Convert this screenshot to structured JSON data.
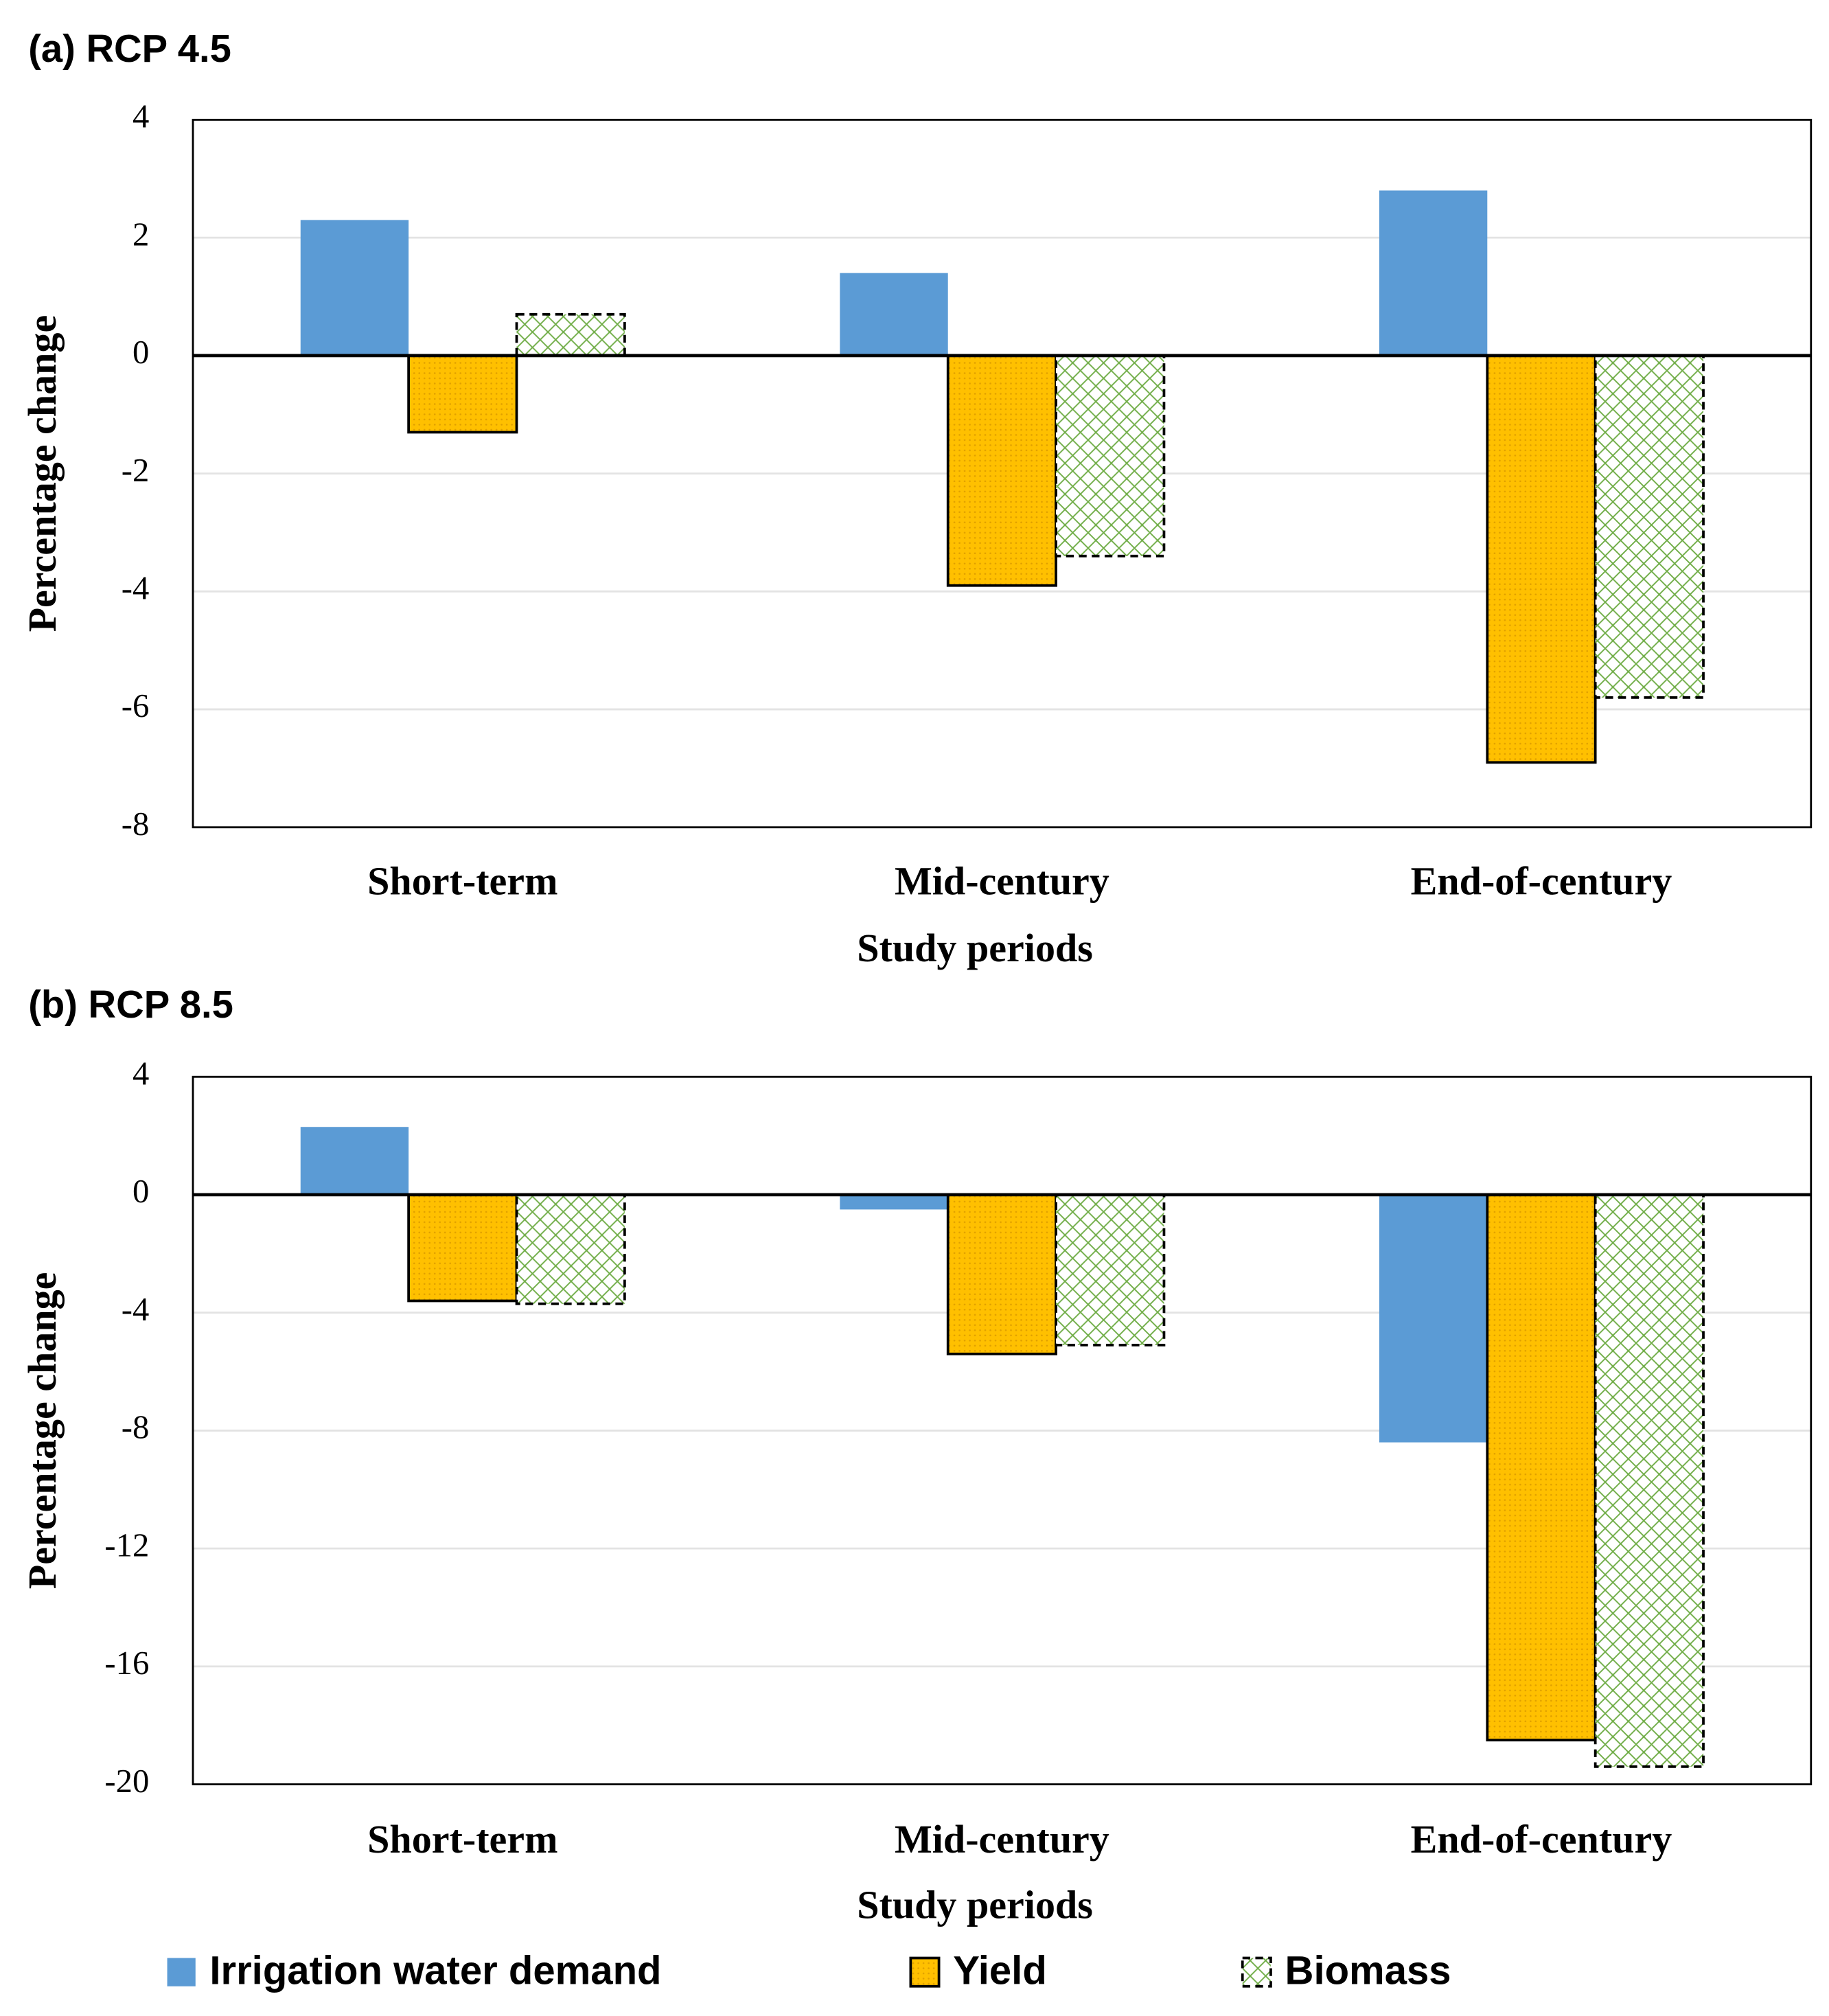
{
  "chart_data": [
    {
      "type": "bar",
      "title": "(a) RCP 4.5",
      "x_label": "Study periods",
      "y_label": "Percentage change",
      "categories": [
        "Short-term",
        "Mid-century",
        "End-of-century"
      ],
      "ylim": [
        -8,
        4
      ],
      "yticks": [
        -8,
        -6,
        -4,
        -2,
        0,
        2,
        4
      ],
      "grid": true,
      "series": [
        {
          "name": "Irrigation water demand",
          "color": "#5b9bd5",
          "pattern": "solid",
          "values": [
            2.3,
            1.4,
            2.8
          ]
        },
        {
          "name": "Yield",
          "color": "#ffc000",
          "pattern": "dots",
          "values": [
            -1.3,
            -3.9,
            -6.9
          ]
        },
        {
          "name": "Biomass",
          "color": "#70ad47",
          "pattern": "crosshatch",
          "values": [
            0.7,
            -3.4,
            -5.8
          ]
        }
      ]
    },
    {
      "type": "bar",
      "title": "(b) RCP 8.5",
      "x_label": "Study periods",
      "y_label": "Percentage change",
      "categories": [
        "Short-term",
        "Mid-century",
        "End-of-century"
      ],
      "ylim": [
        -20,
        4
      ],
      "yticks": [
        -20,
        -16,
        -12,
        -8,
        -4,
        0,
        4
      ],
      "grid": true,
      "series": [
        {
          "color": "#5b9bd5",
          "pattern": "solid",
          "values": [
            2.3,
            -0.5,
            -8.4
          ]
        },
        {
          "color": "#ffc000",
          "pattern": "dots",
          "values": [
            -3.6,
            -5.4,
            -18.5
          ]
        },
        {
          "color": "#70ad47",
          "pattern": "crosshatch",
          "values": [
            -3.7,
            -5.1,
            -19.4
          ]
        }
      ]
    }
  ]
}
